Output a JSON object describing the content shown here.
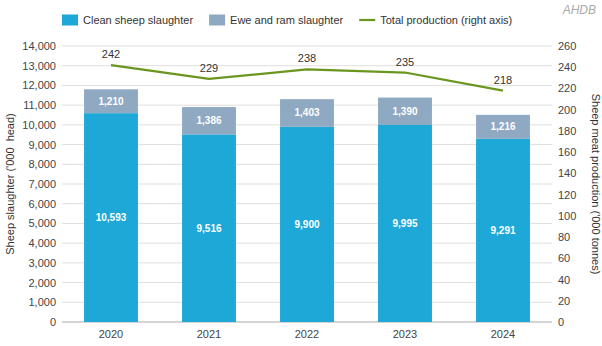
{
  "chart_data": {
    "type": "bar",
    "stacked": true,
    "categories": [
      "2020",
      "2021",
      "2022",
      "2023",
      "2024"
    ],
    "series": [
      {
        "name": "Clean sheep slaughter",
        "color": "#1da8d8",
        "values": [
          10593,
          9516,
          9900,
          9995,
          9291
        ],
        "value_labels": [
          "10,593",
          "9,516",
          "9,900",
          "9,995",
          "9,291"
        ]
      },
      {
        "name": "Ewe and ram slaughter",
        "color": "#8ea9c1",
        "values": [
          1210,
          1386,
          1403,
          1390,
          1216
        ],
        "value_labels": [
          "1,210",
          "1,386",
          "1,403",
          "1,390",
          "1,216"
        ]
      },
      {
        "name": "Total production (right axis)",
        "type": "line",
        "axis": "y2",
        "color": "#6a961f",
        "values": [
          242,
          229,
          238,
          235,
          218
        ]
      }
    ],
    "y_label": "Sheep slaughter ('000  head)",
    "y2_label": "Sheep meat production ('000 tonnes)",
    "ylim": [
      0,
      14000
    ],
    "yticks": [
      0,
      {
        "value": 1000,
        "label": "1,000"
      },
      {
        "value": 2000,
        "label": "2,000"
      },
      {
        "value": 3000,
        "label": "3,000"
      },
      {
        "value": 4000,
        "label": "4,000"
      },
      {
        "value": 5000,
        "label": "5,000"
      },
      {
        "value": 6000,
        "label": "6,000"
      },
      {
        "value": 7000,
        "label": "7,000"
      },
      {
        "value": 8000,
        "label": "8,000"
      },
      {
        "value": 9000,
        "label": "9,000"
      },
      {
        "value": 10000,
        "label": "10,000"
      },
      {
        "value": 11000,
        "label": "11,000"
      },
      {
        "value": 12000,
        "label": "12,000"
      },
      {
        "value": 13000,
        "label": "13,000"
      },
      {
        "value": 14000,
        "label": "14,000"
      }
    ],
    "y2lim": [
      0,
      260
    ],
    "y2ticks": [
      0,
      20,
      40,
      60,
      80,
      100,
      120,
      140,
      160,
      180,
      200,
      220,
      240,
      260
    ],
    "grid": true,
    "legend": "top",
    "data_labels": true,
    "annotations": [
      "AHDB"
    ]
  }
}
